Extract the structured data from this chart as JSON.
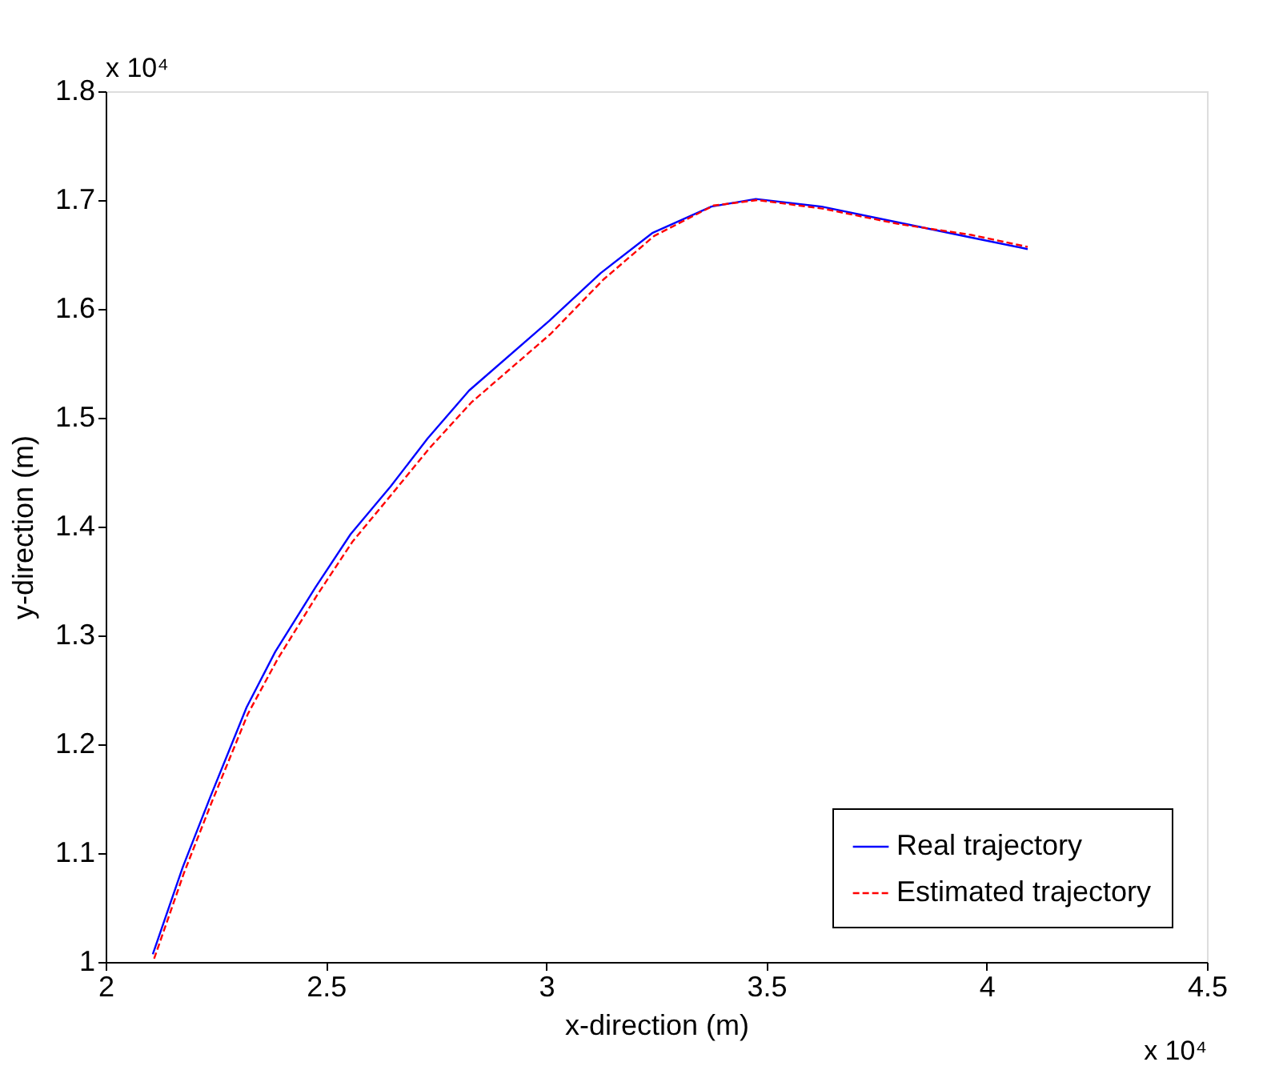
{
  "chart_data": {
    "type": "line",
    "xlabel": "x-direction (m)",
    "ylabel": "y-direction (m)",
    "annotations": [
      "x 10⁴",
      "x 10⁴"
    ],
    "xlim": [
      2,
      4.5
    ],
    "xticks": [
      2,
      2.5,
      3,
      3.5,
      4,
      4.5
    ],
    "ylim": [
      1,
      1.8
    ],
    "yticks": [
      1,
      1.1,
      1.2,
      1.3,
      1.4,
      1.5,
      1.6,
      1.7,
      1.8
    ],
    "grid": false,
    "legend": "bottom right",
    "marker": "none",
    "series": [
      {
        "name": "Real trajectory",
        "color": "#0000ff",
        "line_style": "solid",
        "x": [
          2.107,
          2.175,
          2.237,
          2.32,
          2.385,
          2.476,
          2.556,
          2.647,
          2.731,
          2.825,
          3.007,
          3.124,
          3.242,
          3.375,
          3.476,
          3.625,
          3.793,
          3.96,
          4.093
        ],
        "values": [
          1.007,
          1.087,
          1.151,
          1.234,
          1.285,
          1.344,
          1.393,
          1.437,
          1.481,
          1.525,
          1.589,
          1.633,
          1.67,
          1.694,
          1.701,
          1.694,
          1.68,
          1.666,
          1.655
        ]
      },
      {
        "name": "Estimated trajectory",
        "color": "#ff0000",
        "line_style": "dashed",
        "x": [
          2.11,
          2.178,
          2.24,
          2.323,
          2.39,
          2.48,
          2.56,
          2.65,
          2.735,
          2.83,
          3.01,
          3.13,
          3.245,
          3.38,
          3.48,
          3.63,
          3.8,
          3.965,
          4.093
        ],
        "values": [
          1.003,
          1.082,
          1.146,
          1.228,
          1.278,
          1.337,
          1.386,
          1.43,
          1.472,
          1.514,
          1.577,
          1.627,
          1.667,
          1.695,
          1.7,
          1.692,
          1.678,
          1.668,
          1.657
        ]
      }
    ]
  }
}
